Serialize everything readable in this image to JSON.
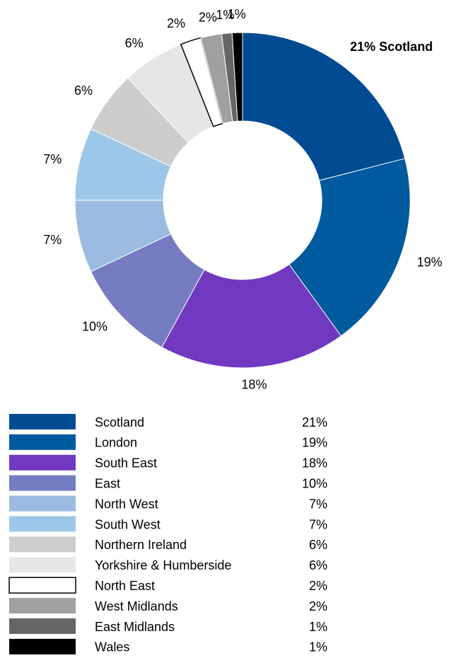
{
  "chart_data": {
    "type": "donut",
    "categories": [
      "Scotland",
      "London",
      "South East",
      "East",
      "North West",
      "South West",
      "Northern Ireland",
      "Yorkshire & Humberside",
      "North East",
      "West Midlands",
      "East Midlands",
      "Wales"
    ],
    "values": [
      21,
      19,
      18,
      10,
      7,
      7,
      6,
      6,
      2,
      2,
      1,
      1
    ],
    "value_labels": [
      "21%",
      "19%",
      "18%",
      "10%",
      "7%",
      "7%",
      "6%",
      "6%",
      "2%",
      "2%",
      "1%",
      "1%"
    ],
    "colors": [
      "#004b91",
      "#005a9e",
      "#7138c0",
      "#757cc2",
      "#9bbbe1",
      "#9dc7e8",
      "#cdcdcd",
      "#e6e6e6",
      "#ffffff",
      "#a0a0a0",
      "#666666",
      "#000000"
    ],
    "legend": "bottom"
  }
}
